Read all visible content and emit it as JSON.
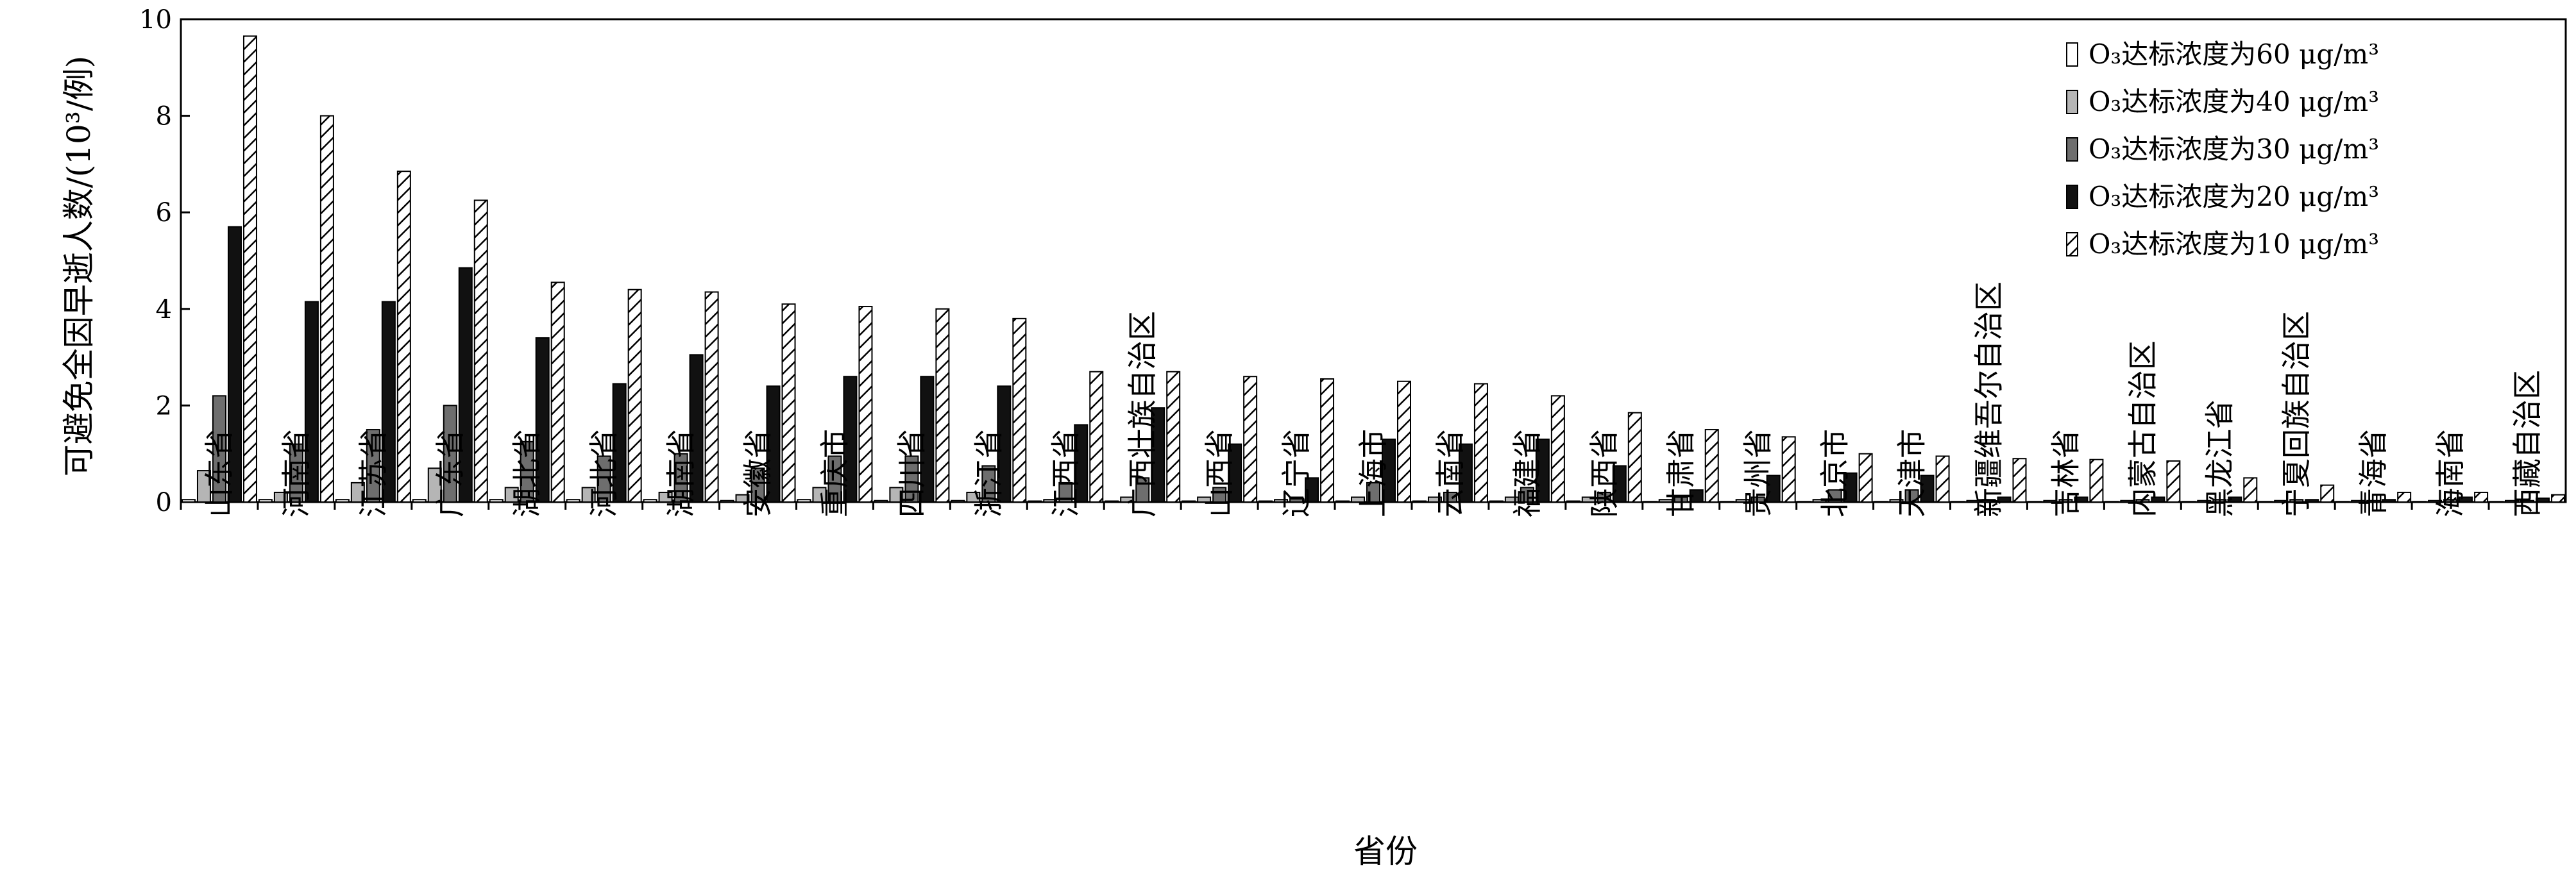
{
  "chart_data": {
    "type": "bar",
    "xlabel": "省份",
    "ylabel": "可避免全因早逝人数/(10³/例)",
    "ylim": [
      0,
      10
    ],
    "yticks": [
      0,
      2,
      4,
      6,
      8,
      10
    ],
    "legend_position": "top-right",
    "grid": false,
    "categories": [
      "山东省",
      "河南省",
      "江苏省",
      "广东省",
      "湖北省",
      "河北省",
      "湖南省",
      "安徽省",
      "重庆市",
      "四川省",
      "浙江省",
      "江西省",
      "广西壮族自治区",
      "山西省",
      "辽宁省",
      "上海市",
      "云南省",
      "福建省",
      "陕西省",
      "甘肃省",
      "贵州省",
      "北京市",
      "天津市",
      "新疆维吾尔自治区",
      "吉林省",
      "内蒙古自治区",
      "黑龙江省",
      "宁夏回族自治区",
      "青海省",
      "海南省",
      "西藏自治区"
    ],
    "series": [
      {
        "name": "O₃达标浓度为60 μg/m³",
        "fill": "white",
        "values": [
          0.05,
          0.05,
          0.05,
          0.05,
          0.05,
          0.05,
          0.05,
          0.03,
          0.05,
          0.03,
          0.03,
          0.02,
          0.02,
          0.02,
          0.02,
          0.02,
          0.02,
          0.02,
          0.02,
          0.01,
          0.01,
          0.01,
          0.01,
          0.01,
          0.01,
          0.01,
          0.01,
          0.01,
          0.01,
          0.01,
          0.01
        ]
      },
      {
        "name": "O₃达标浓度为40 μg/m³",
        "fill": "light-gray",
        "values": [
          0.65,
          0.2,
          0.4,
          0.7,
          0.3,
          0.3,
          0.2,
          0.15,
          0.3,
          0.3,
          0.2,
          0.05,
          0.1,
          0.1,
          0.05,
          0.1,
          0.1,
          0.1,
          0.1,
          0.05,
          0.05,
          0.05,
          0.05,
          0.03,
          0.03,
          0.03,
          0.03,
          0.03,
          0.03,
          0.03,
          0.03
        ]
      },
      {
        "name": "O₃达标浓度为30 μg/m³",
        "fill": "dark-gray",
        "values": [
          2.2,
          1.2,
          1.5,
          2.0,
          1.25,
          0.95,
          1.0,
          0.7,
          0.95,
          0.95,
          0.75,
          0.4,
          0.5,
          0.3,
          0.1,
          0.4,
          0.2,
          0.3,
          0.2,
          0.1,
          0.1,
          0.25,
          0.25,
          0.05,
          0.05,
          0.05,
          0.05,
          0.05,
          0.03,
          0.05,
          0.03
        ]
      },
      {
        "name": "O₃达标浓度为20 μg/m³",
        "fill": "black",
        "values": [
          5.7,
          4.15,
          4.15,
          4.85,
          3.4,
          2.45,
          3.05,
          2.4,
          2.6,
          2.6,
          2.4,
          1.6,
          1.95,
          1.2,
          0.5,
          1.3,
          1.2,
          1.3,
          0.75,
          0.25,
          0.55,
          0.6,
          0.55,
          0.1,
          0.1,
          0.1,
          0.1,
          0.05,
          0.05,
          0.1,
          0.08
        ]
      },
      {
        "name": "O₃达标浓度为10 μg/m³",
        "fill": "hatched",
        "values": [
          9.65,
          8.0,
          6.85,
          6.25,
          4.55,
          4.4,
          4.35,
          4.1,
          4.05,
          4.0,
          3.8,
          2.7,
          2.7,
          2.6,
          2.55,
          2.5,
          2.45,
          2.2,
          1.85,
          1.5,
          1.35,
          1.0,
          0.95,
          0.9,
          0.88,
          0.85,
          0.5,
          0.35,
          0.2,
          0.2,
          0.15
        ]
      }
    ]
  }
}
